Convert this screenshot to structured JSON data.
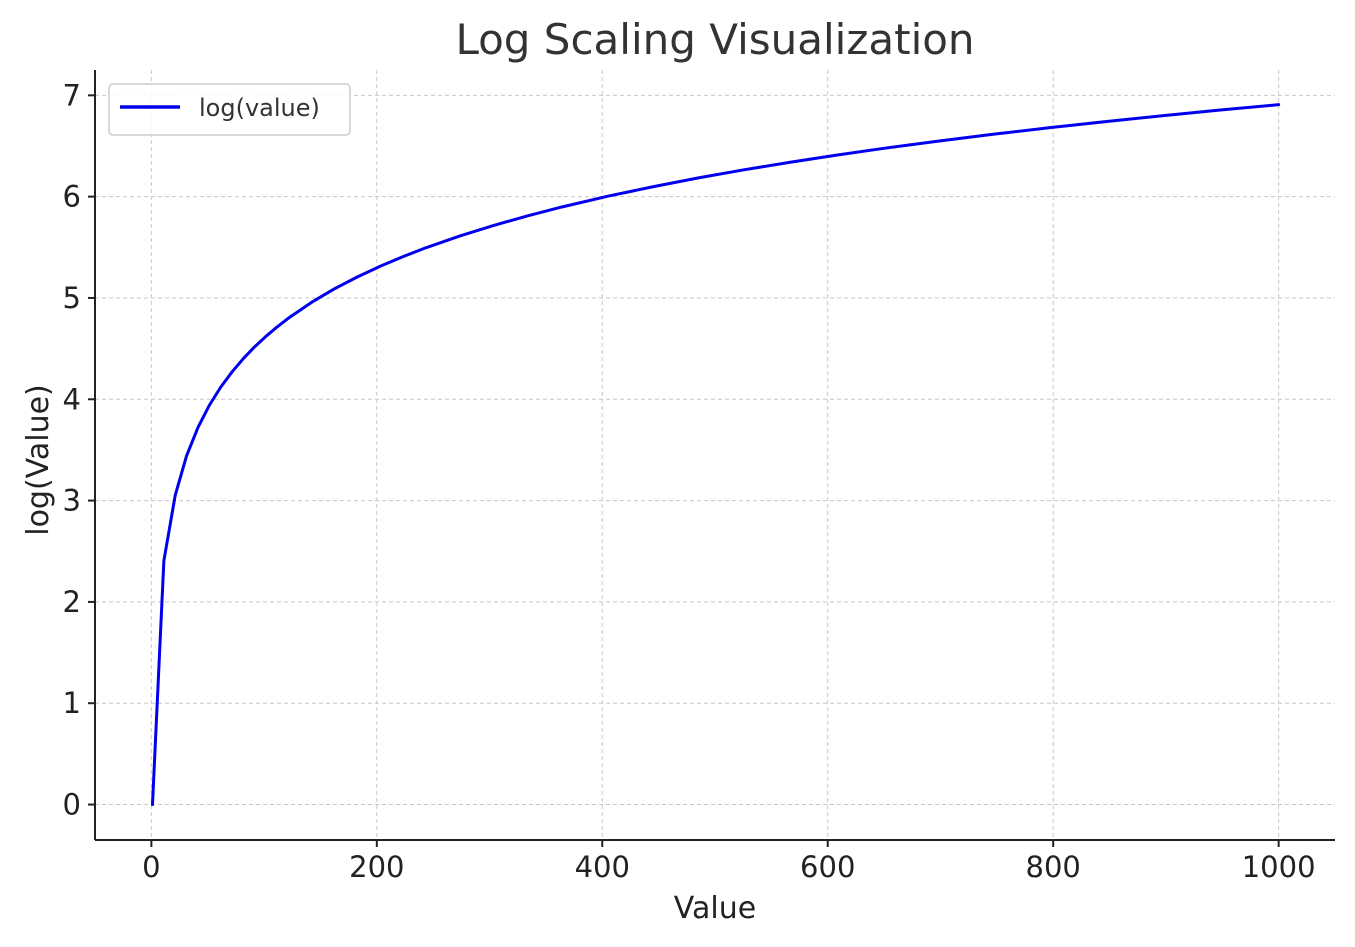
{
  "chart_data": {
    "type": "line",
    "title": "Log Scaling Visualization",
    "xlabel": "Value",
    "ylabel": "log(Value)",
    "xlim": [
      -50,
      1050
    ],
    "ylim": [
      -0.35,
      7.25
    ],
    "xticks": [
      0,
      200,
      400,
      600,
      800,
      1000
    ],
    "yticks": [
      0,
      1,
      2,
      3,
      4,
      5,
      6,
      7
    ],
    "grid": true,
    "legend_position": "top-left",
    "series": [
      {
        "name": "log(value)",
        "color": "#0000ee",
        "x": [
          1,
          11.09,
          21.18,
          31.27,
          41.36,
          51.45,
          61.54,
          71.63,
          81.72,
          91.81,
          101.9,
          112,
          122.1,
          142.3,
          162.4,
          182.6,
          202.8,
          223,
          243.2,
          273.4,
          303.7,
          333.9,
          364.2,
          404.5,
          444.9,
          485.3,
          525.6,
          566,
          606.4,
          646.7,
          697.2,
          747.6,
          798.1,
          848.5,
          899,
          949.4,
          1000
        ],
        "y": [
          0,
          2.406,
          3.053,
          3.443,
          3.722,
          3.941,
          4.12,
          4.271,
          4.403,
          4.52,
          4.624,
          4.718,
          4.805,
          4.958,
          5.09,
          5.207,
          5.312,
          5.407,
          5.494,
          5.611,
          5.716,
          5.811,
          5.898,
          6.003,
          6.098,
          6.185,
          6.265,
          6.338,
          6.407,
          6.472,
          6.547,
          6.617,
          6.682,
          6.743,
          6.801,
          6.856,
          6.908
        ]
      }
    ]
  }
}
